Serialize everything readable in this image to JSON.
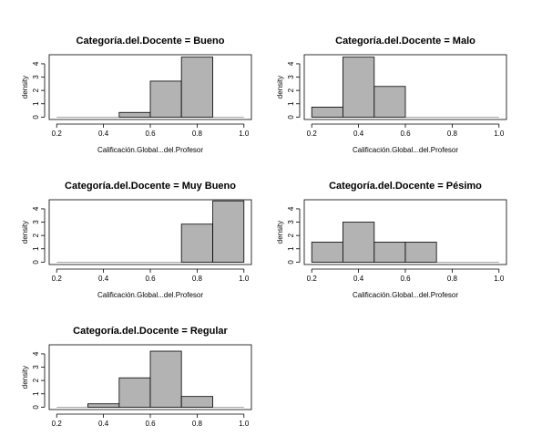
{
  "chart_data": [
    {
      "type": "bar",
      "title": "Categoría.del.Docente = Bueno",
      "xlabel": "Calificación.Global...del.Profesor",
      "ylabel": "density",
      "xlim": [
        0.2,
        1.0
      ],
      "ylim": [
        0,
        4.5
      ],
      "xticks": [
        "0.2",
        "0.4",
        "0.6",
        "0.8",
        "1.0"
      ],
      "yticks": [
        "0",
        "1",
        "2",
        "3",
        "4"
      ],
      "bins": [
        {
          "x0": 0.467,
          "x1": 0.6,
          "value": 0.35
        },
        {
          "x0": 0.6,
          "x1": 0.733,
          "value": 2.7
        },
        {
          "x0": 0.733,
          "x1": 0.867,
          "value": 4.5
        }
      ]
    },
    {
      "type": "bar",
      "title": "Categoría.del.Docente = Malo",
      "xlabel": "Calificación.Global...del.Profesor",
      "ylabel": "density",
      "xlim": [
        0.2,
        1.0
      ],
      "ylim": [
        0,
        4.5
      ],
      "xticks": [
        "0.2",
        "0.4",
        "0.6",
        "0.8",
        "1.0"
      ],
      "yticks": [
        "0",
        "1",
        "2",
        "3",
        "4"
      ],
      "bins": [
        {
          "x0": 0.2,
          "x1": 0.333,
          "value": 0.75
        },
        {
          "x0": 0.333,
          "x1": 0.467,
          "value": 4.5
        },
        {
          "x0": 0.467,
          "x1": 0.6,
          "value": 2.3
        }
      ]
    },
    {
      "type": "bar",
      "title": "Categoría.del.Docente = Muy Bueno",
      "xlabel": "Calificación.Global...del.Profesor",
      "ylabel": "density",
      "xlim": [
        0.2,
        1.0
      ],
      "ylim": [
        0,
        4.5
      ],
      "xticks": [
        "0.2",
        "0.4",
        "0.6",
        "0.8",
        "1.0"
      ],
      "yticks": [
        "0",
        "1",
        "2",
        "3",
        "4"
      ],
      "bins": [
        {
          "x0": 0.733,
          "x1": 0.867,
          "value": 2.85
        },
        {
          "x0": 0.867,
          "x1": 1.0,
          "value": 4.6
        }
      ]
    },
    {
      "type": "bar",
      "title": "Categoría.del.Docente = Pésimo",
      "xlabel": "Calificación.Global...del.Profesor",
      "ylabel": "density",
      "xlim": [
        0.2,
        1.0
      ],
      "ylim": [
        0,
        4.5
      ],
      "xticks": [
        "0.2",
        "0.4",
        "0.6",
        "0.8",
        "1.0"
      ],
      "yticks": [
        "0",
        "1",
        "2",
        "3",
        "4"
      ],
      "bins": [
        {
          "x0": 0.2,
          "x1": 0.333,
          "value": 1.5
        },
        {
          "x0": 0.333,
          "x1": 0.467,
          "value": 3.0
        },
        {
          "x0": 0.467,
          "x1": 0.6,
          "value": 1.5
        },
        {
          "x0": 0.6,
          "x1": 0.733,
          "value": 1.5
        }
      ]
    },
    {
      "type": "bar",
      "title": "Categoría.del.Docente = Regular",
      "xlabel": "",
      "ylabel": "density",
      "xlim": [
        0.2,
        1.0
      ],
      "ylim": [
        0,
        4.5
      ],
      "xticks": [
        "0.2",
        "0.4",
        "0.6",
        "0.8",
        "1.0"
      ],
      "yticks": [
        "0",
        "1",
        "2",
        "3",
        "4"
      ],
      "bins": [
        {
          "x0": 0.333,
          "x1": 0.467,
          "value": 0.25
        },
        {
          "x0": 0.467,
          "x1": 0.6,
          "value": 2.2
        },
        {
          "x0": 0.6,
          "x1": 0.733,
          "value": 4.2
        },
        {
          "x0": 0.733,
          "x1": 0.867,
          "value": 0.8
        }
      ]
    }
  ],
  "colors": {
    "bar_fill": "#b3b3b3",
    "bar_stroke": "#000000",
    "axis": "#000000",
    "baseline": "#888888"
  }
}
